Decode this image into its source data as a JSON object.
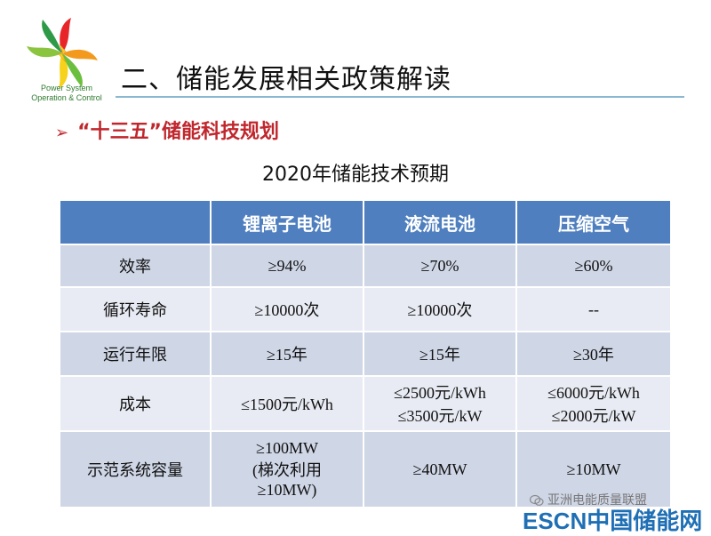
{
  "logo": {
    "line1": "Power System",
    "line2": "Operation & Control",
    "colors": [
      "#e8262a",
      "#f39a1e",
      "#f7d21a",
      "#8bc53f",
      "#2e9a48"
    ]
  },
  "header": {
    "title": "二、储能发展相关政策解读"
  },
  "bullet": {
    "marker": "➢",
    "text": "“十三五”储能科技规划"
  },
  "subtitle": "2020年储能技术预期",
  "table": {
    "columns": [
      "",
      "锂离子电池",
      "液流电池",
      "压缩空气"
    ],
    "rows": [
      {
        "label": "效率",
        "cells": [
          [
            "≥94%"
          ],
          [
            "≥70%"
          ],
          [
            "≥60%"
          ]
        ]
      },
      {
        "label": "循环寿命",
        "cells": [
          [
            "≥10000次"
          ],
          [
            "≥10000次"
          ],
          [
            "--"
          ]
        ]
      },
      {
        "label": "运行年限",
        "cells": [
          [
            "≥15年"
          ],
          [
            "≥15年"
          ],
          [
            "≥30年"
          ]
        ]
      },
      {
        "label": "成本",
        "cells": [
          [
            "≤1500元/kWh"
          ],
          [
            "≤2500元/kWh",
            "≤3500元/kW"
          ],
          [
            "≤6000元/kWh",
            "≤2000元/kW"
          ]
        ]
      },
      {
        "label": "示范系统容量",
        "cells": [
          [
            "≥100MW",
            "(梯次利用",
            "≥10MW)"
          ],
          [
            "≥40MW"
          ],
          [
            "≥10MW"
          ]
        ]
      }
    ]
  },
  "watermark": {
    "line1": "亚洲电能质量联盟",
    "esc": "ESCN",
    "cn": "中国储能网"
  },
  "colors": {
    "header_bg": "#4f7fbf",
    "row_dark": "#cfd6e6",
    "row_light": "#e8ebf3",
    "bullet": "#c0272d",
    "rule": "#8ab8d0"
  }
}
